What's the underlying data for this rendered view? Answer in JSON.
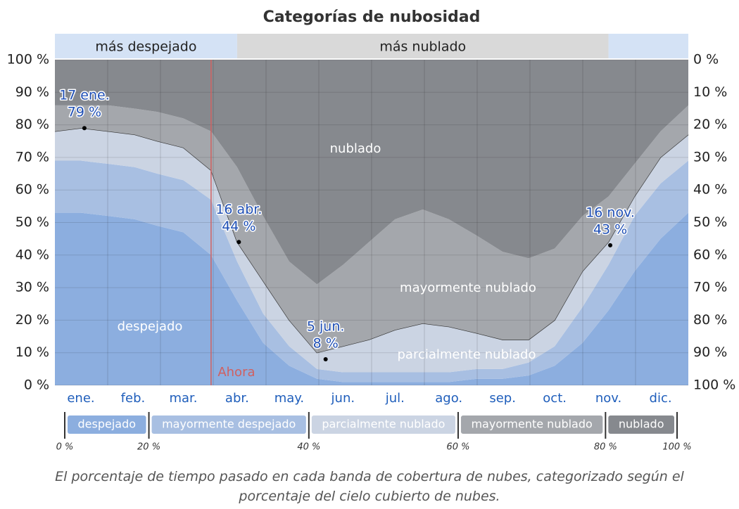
{
  "chart_data": {
    "type": "stacked_area",
    "title": "Categorías de nubosidad",
    "caption": "El porcentaje de tiempo pasado en cada banda de cobertura de nubes, categorizado según el porcentaje del cielo cubierto de nubes.",
    "xlim": [
      0,
      365
    ],
    "x": [
      0,
      15,
      31,
      46,
      59,
      74,
      90,
      105,
      120,
      135,
      151,
      166,
      181,
      196,
      212,
      227,
      243,
      258,
      273,
      288,
      304,
      319,
      334,
      349,
      365
    ],
    "xticks": [
      {
        "value": 15,
        "label": "ene."
      },
      {
        "value": 45,
        "label": "feb."
      },
      {
        "value": 74,
        "label": "mar."
      },
      {
        "value": 105,
        "label": "abr."
      },
      {
        "value": 135,
        "label": "may."
      },
      {
        "value": 166,
        "label": "jun."
      },
      {
        "value": 196,
        "label": "jul."
      },
      {
        "value": 227,
        "label": "ago."
      },
      {
        "value": 258,
        "label": "sep."
      },
      {
        "value": 288,
        "label": "oct."
      },
      {
        "value": 319,
        "label": "nov."
      },
      {
        "value": 349,
        "label": "dic."
      }
    ],
    "ylim": [
      0,
      100
    ],
    "yticks": [
      {
        "value": 0,
        "label": "0 %"
      },
      {
        "value": 10,
        "label": "10 %"
      },
      {
        "value": 20,
        "label": "20 %"
      },
      {
        "value": 30,
        "label": "30 %"
      },
      {
        "value": 40,
        "label": "40 %"
      },
      {
        "value": 50,
        "label": "50 %"
      },
      {
        "value": 60,
        "label": "60 %"
      },
      {
        "value": 70,
        "label": "70 %"
      },
      {
        "value": 80,
        "label": "80 %"
      },
      {
        "value": 90,
        "label": "90 %"
      },
      {
        "value": 100,
        "label": "100 %"
      }
    ],
    "y2lim": [
      100,
      0
    ],
    "y2ticks": [
      {
        "value": 0,
        "label": "0 %"
      },
      {
        "value": 10,
        "label": "10 %"
      },
      {
        "value": 20,
        "label": "20 %"
      },
      {
        "value": 30,
        "label": "30 %"
      },
      {
        "value": 40,
        "label": "40 %"
      },
      {
        "value": 50,
        "label": "50 %"
      },
      {
        "value": 60,
        "label": "60 %"
      },
      {
        "value": 70,
        "label": "70 %"
      },
      {
        "value": 80,
        "label": "80 %"
      },
      {
        "value": 90,
        "label": "90 %"
      },
      {
        "value": 100,
        "label": "100 %"
      }
    ],
    "series": [
      {
        "name": "despejado",
        "color": "#8caedf",
        "values": [
          53,
          53,
          52,
          51,
          49,
          47,
          40,
          26,
          13,
          6,
          2,
          1,
          1,
          1,
          1,
          1,
          2,
          2,
          3,
          6,
          13,
          23,
          35,
          45,
          53
        ]
      },
      {
        "name": "mayormente despejado",
        "color": "#a8bfe2",
        "values": [
          16,
          16,
          16,
          16,
          16,
          16,
          17,
          12,
          9,
          6,
          3,
          3,
          3,
          3,
          3,
          3,
          3,
          3,
          4,
          6,
          11,
          14,
          17,
          17,
          16
        ]
      },
      {
        "name": "parcialmente nublado",
        "color": "#cbd4e3",
        "values": [
          9,
          10,
          10,
          10,
          10,
          10,
          9,
          6,
          10,
          8,
          5,
          8,
          10,
          13,
          15,
          14,
          11,
          9,
          7,
          8,
          11,
          7,
          6,
          8,
          8
        ]
      },
      {
        "name": "mayormente nublado",
        "color": "#a4a7ac",
        "values": [
          8,
          7,
          8,
          8,
          9,
          9,
          12,
          23,
          20,
          18,
          21,
          25,
          30,
          34,
          35,
          33,
          30,
          27,
          25,
          22,
          17,
          14,
          10,
          8,
          9
        ]
      },
      {
        "name": "nublado",
        "color": "#86898e",
        "values": [
          14,
          14,
          14,
          15,
          16,
          18,
          22,
          33,
          48,
          62,
          69,
          63,
          56,
          49,
          46,
          49,
          54,
          59,
          61,
          58,
          48,
          42,
          32,
          22,
          14
        ]
      }
    ],
    "annotations": [
      {
        "x": 17,
        "value": 79,
        "date_label": "17 ene.",
        "value_label": "79 %"
      },
      {
        "x": 106,
        "value": 44,
        "date_label": "16 abr.",
        "value_label": "44 %"
      },
      {
        "x": 156,
        "value": 8,
        "date_label": "5 jun.",
        "value_label": "8 %"
      },
      {
        "x": 320,
        "value": 43,
        "date_label": "16 nov.",
        "value_label": "43 %"
      }
    ],
    "now": {
      "x": 90,
      "label": "Ahora",
      "color": "#d06060"
    },
    "top_bands": [
      {
        "label": "más despejado",
        "from": 0,
        "to": 105,
        "color": "#d4e2f5"
      },
      {
        "label": "más nublado",
        "from": 105,
        "to": 319,
        "color": "#d9d9d9"
      },
      {
        "from": 319,
        "to": 365,
        "color": "#d4e2f5"
      }
    ],
    "legend_thresholds": [
      {
        "value": 0,
        "label": "0 %"
      },
      {
        "value": 20,
        "label": "20 %"
      },
      {
        "value": 40,
        "label": "40 %"
      },
      {
        "value": 60,
        "label": "60 %"
      },
      {
        "value": 80,
        "label": "80 %"
      },
      {
        "value": 100,
        "label": "100 %"
      }
    ]
  }
}
